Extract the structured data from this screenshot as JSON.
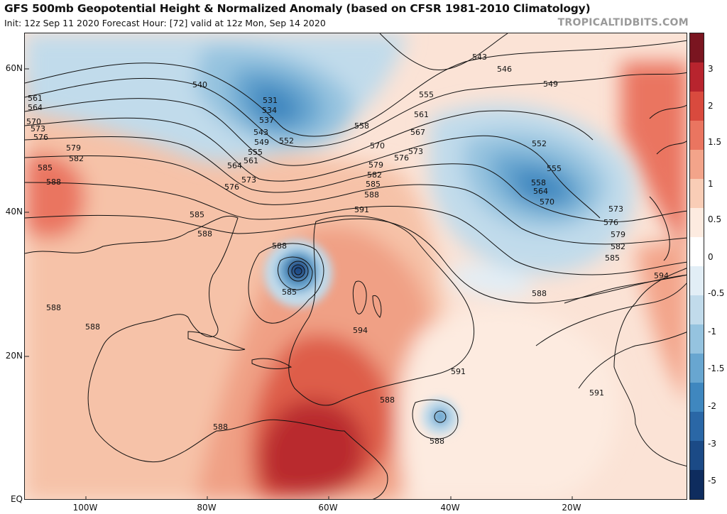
{
  "header": {
    "title": "GFS 500mb Geopotential Height & Normalized Anomaly (based on CFSR 1981-2010 Climatology)",
    "subtitle": "Init: 12z Sep 11 2020   Forecast Hour: [72]   valid at 12z Mon, Sep 14 2020",
    "brand": "TROPICALTIDBITS.COM"
  },
  "map": {
    "lat_labels": [
      "60N",
      "40N",
      "20N",
      "EQ"
    ],
    "lon_labels": [
      "100W",
      "80W",
      "60W",
      "40W",
      "20W"
    ],
    "contour_labels": [
      {
        "text": "543"
      },
      {
        "text": "546"
      },
      {
        "text": "549"
      },
      {
        "text": "540"
      },
      {
        "text": "531"
      },
      {
        "text": "534"
      },
      {
        "text": "537"
      },
      {
        "text": "543"
      },
      {
        "text": "549"
      },
      {
        "text": "552"
      },
      {
        "text": "555"
      },
      {
        "text": "561"
      },
      {
        "text": "564"
      },
      {
        "text": "561"
      },
      {
        "text": "564"
      },
      {
        "text": "570"
      },
      {
        "text": "573"
      },
      {
        "text": "576"
      },
      {
        "text": "579"
      },
      {
        "text": "582"
      },
      {
        "text": "585"
      },
      {
        "text": "588"
      },
      {
        "text": "576"
      },
      {
        "text": "573"
      },
      {
        "text": "555"
      },
      {
        "text": "558"
      },
      {
        "text": "561"
      },
      {
        "text": "567"
      },
      {
        "text": "570"
      },
      {
        "text": "573"
      },
      {
        "text": "576"
      },
      {
        "text": "579"
      },
      {
        "text": "582"
      },
      {
        "text": "585"
      },
      {
        "text": "588"
      },
      {
        "text": "591"
      },
      {
        "text": "552"
      },
      {
        "text": "555"
      },
      {
        "text": "558"
      },
      {
        "text": "564"
      },
      {
        "text": "570"
      },
      {
        "text": "573"
      },
      {
        "text": "576"
      },
      {
        "text": "579"
      },
      {
        "text": "582"
      },
      {
        "text": "585"
      },
      {
        "text": "588"
      },
      {
        "text": "594"
      },
      {
        "text": "585"
      },
      {
        "text": "588"
      },
      {
        "text": "588"
      },
      {
        "text": "585"
      },
      {
        "text": "588"
      },
      {
        "text": "594"
      },
      {
        "text": "588"
      },
      {
        "text": "588"
      },
      {
        "text": "591"
      },
      {
        "text": "591"
      },
      {
        "text": "588"
      },
      {
        "text": "588"
      }
    ]
  },
  "colorbar": {
    "labels": [
      "3",
      "2",
      "1.5",
      "1",
      "0.5",
      "0",
      "-0.5",
      "-1",
      "-1.5",
      "-2",
      "-3",
      "-5"
    ],
    "colors": [
      "#7a1520",
      "#b8242e",
      "#d94a3e",
      "#ea7560",
      "#f3a48a",
      "#f9cdb6",
      "#fdebe0",
      "#ffffff",
      "#e2eef6",
      "#c1dbeb",
      "#95c3df",
      "#68a6d0",
      "#3f87bf",
      "#2a67a6",
      "#1b4a86",
      "#0e2c5e"
    ]
  }
}
